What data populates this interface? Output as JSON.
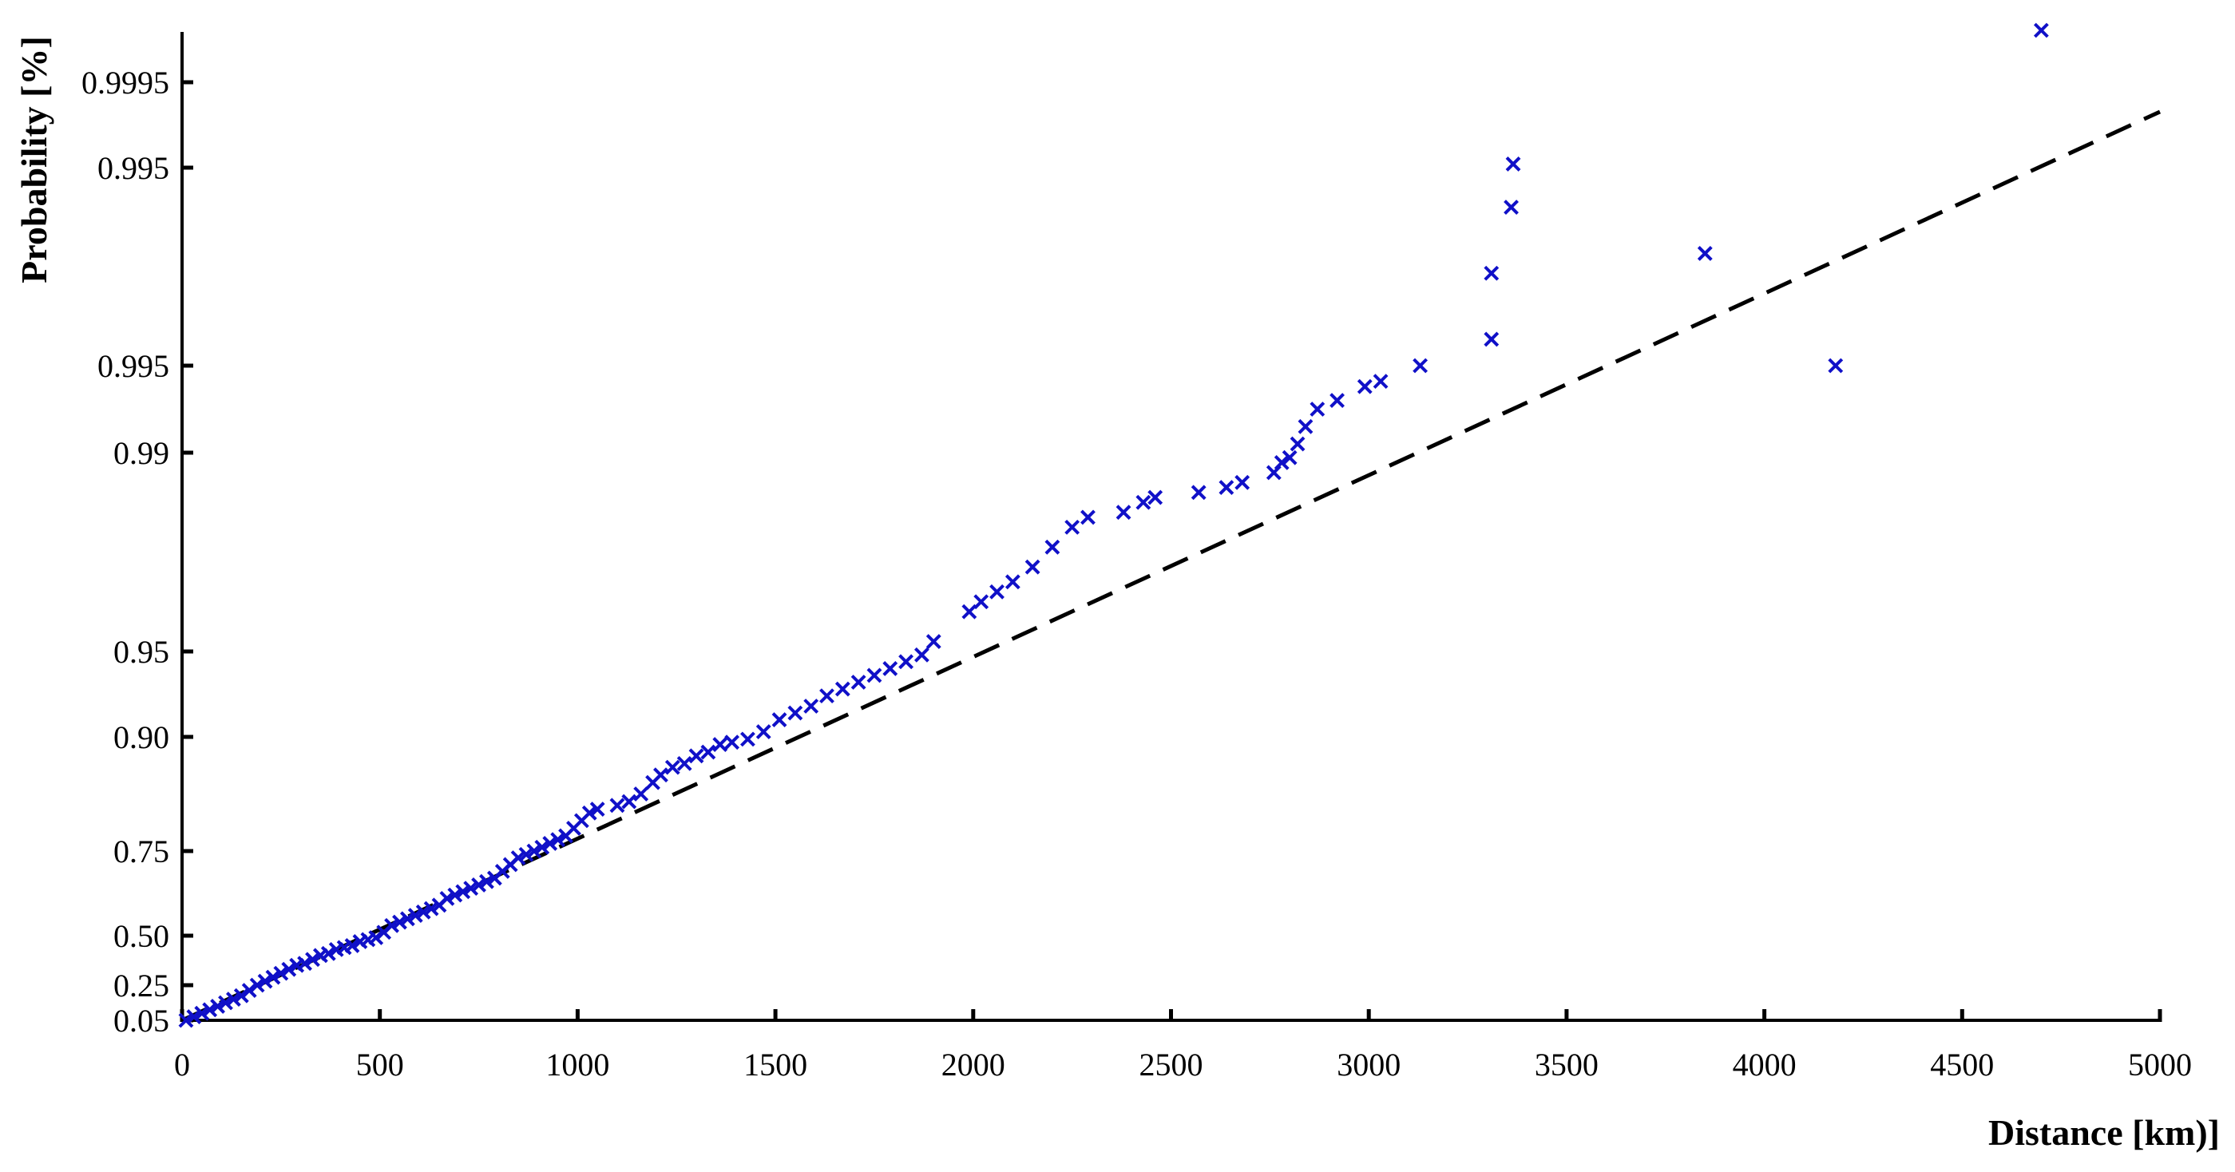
{
  "chart_data": {
    "type": "scatter",
    "title": "",
    "xlabel": "Distance [km)]",
    "ylabel": "Probability [%]",
    "xlim": [
      0,
      5000
    ],
    "x_ticks": [
      0,
      500,
      1000,
      1500,
      2000,
      2500,
      3000,
      3500,
      4000,
      4500,
      5000
    ],
    "y_scale": "probability",
    "y_tick_labels": [
      "0.05",
      "0.25",
      "0.50",
      "0.75",
      "0.90",
      "0.95",
      "0.99",
      "0.995",
      "0.995",
      "0.9995"
    ],
    "grid": false,
    "legend": "none",
    "series": [
      {
        "marker": "x",
        "color": "#1010c8",
        "points": [
          [
            10,
            0.05
          ],
          [
            30,
            0.07
          ],
          [
            50,
            0.09
          ],
          [
            70,
            0.11
          ],
          [
            90,
            0.13
          ],
          [
            110,
            0.15
          ],
          [
            130,
            0.17
          ],
          [
            150,
            0.19
          ],
          [
            170,
            0.22
          ],
          [
            190,
            0.25
          ],
          [
            210,
            0.27
          ],
          [
            230,
            0.29
          ],
          [
            250,
            0.31
          ],
          [
            270,
            0.33
          ],
          [
            290,
            0.35
          ],
          [
            310,
            0.36
          ],
          [
            330,
            0.38
          ],
          [
            350,
            0.4
          ],
          [
            370,
            0.41
          ],
          [
            390,
            0.43
          ],
          [
            410,
            0.44
          ],
          [
            430,
            0.45
          ],
          [
            450,
            0.47
          ],
          [
            470,
            0.48
          ],
          [
            490,
            0.49
          ],
          [
            510,
            0.51
          ],
          [
            530,
            0.53
          ],
          [
            550,
            0.54
          ],
          [
            570,
            0.55
          ],
          [
            590,
            0.56
          ],
          [
            610,
            0.57
          ],
          [
            630,
            0.58
          ],
          [
            650,
            0.59
          ],
          [
            670,
            0.61
          ],
          [
            690,
            0.62
          ],
          [
            710,
            0.63
          ],
          [
            730,
            0.64
          ],
          [
            750,
            0.65
          ],
          [
            770,
            0.66
          ],
          [
            790,
            0.67
          ],
          [
            810,
            0.69
          ],
          [
            830,
            0.71
          ],
          [
            850,
            0.73
          ],
          [
            870,
            0.74
          ],
          [
            890,
            0.75
          ],
          [
            910,
            0.755
          ],
          [
            930,
            0.76
          ],
          [
            950,
            0.765
          ],
          [
            970,
            0.77
          ],
          [
            990,
            0.78
          ],
          [
            1010,
            0.79
          ],
          [
            1030,
            0.8
          ],
          [
            1050,
            0.805
          ],
          [
            1100,
            0.81
          ],
          [
            1130,
            0.815
          ],
          [
            1160,
            0.825
          ],
          [
            1190,
            0.84
          ],
          [
            1210,
            0.85
          ],
          [
            1240,
            0.86
          ],
          [
            1270,
            0.865
          ],
          [
            1300,
            0.875
          ],
          [
            1330,
            0.88
          ],
          [
            1360,
            0.89
          ],
          [
            1390,
            0.893
          ],
          [
            1430,
            0.897
          ],
          [
            1470,
            0.903
          ],
          [
            1510,
            0.91
          ],
          [
            1550,
            0.914
          ],
          [
            1590,
            0.918
          ],
          [
            1630,
            0.924
          ],
          [
            1670,
            0.928
          ],
          [
            1710,
            0.932
          ],
          [
            1750,
            0.936
          ],
          [
            1790,
            0.94
          ],
          [
            1830,
            0.944
          ],
          [
            1870,
            0.948
          ],
          [
            1900,
            0.952
          ],
          [
            1990,
            0.958
          ],
          [
            2020,
            0.96
          ],
          [
            2060,
            0.962
          ],
          [
            2100,
            0.964
          ],
          [
            2150,
            0.967
          ],
          [
            2200,
            0.971
          ],
          [
            2250,
            0.975
          ],
          [
            2290,
            0.977
          ],
          [
            2380,
            0.978
          ],
          [
            2430,
            0.98
          ],
          [
            2460,
            0.981
          ],
          [
            2570,
            0.982
          ],
          [
            2640,
            0.983
          ],
          [
            2680,
            0.984
          ],
          [
            2760,
            0.986
          ],
          [
            2780,
            0.988
          ],
          [
            2800,
            0.989
          ],
          [
            2820,
            0.9905
          ],
          [
            2840,
            0.9915
          ],
          [
            2870,
            0.9925
          ],
          [
            2920,
            0.993
          ],
          [
            2990,
            0.9938
          ],
          [
            3030,
            0.9941
          ],
          [
            3130,
            0.995
          ],
          [
            3310,
            0.9952
          ],
          [
            3310,
            0.9957
          ],
          [
            3360,
            0.9962
          ],
          [
            3365,
            0.9966
          ],
          [
            3850,
            0.99585
          ],
          [
            4180,
            0.995
          ],
          [
            4700,
            0.9995
          ]
        ]
      }
    ],
    "reference_line": {
      "style": "dashed",
      "color": "#000000",
      "from": [
        0,
        0.05
      ],
      "to": [
        5000,
        0.995
      ]
    }
  }
}
